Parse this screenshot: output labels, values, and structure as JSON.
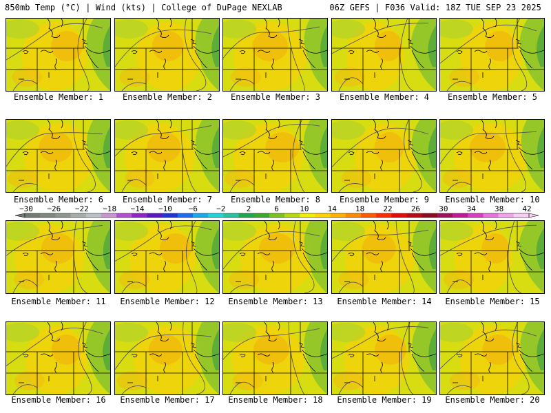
{
  "header": {
    "left": "850mb Temp (°C) | Wind (kts) | College of DuPage NEXLAB",
    "right": "06Z GEFS | F036 Valid: 18Z TUE SEP 23 2025"
  },
  "members": [
    {
      "label": "Ensemble Member: 1",
      "warmth": 0.5
    },
    {
      "label": "Ensemble Member: 2",
      "warmth": 0.5
    },
    {
      "label": "Ensemble Member: 3",
      "warmth": 0.6
    },
    {
      "label": "Ensemble Member: 4",
      "warmth": 0.4
    },
    {
      "label": "Ensemble Member: 5",
      "warmth": 0.45
    },
    {
      "label": "Ensemble Member: 6",
      "warmth": 0.55
    },
    {
      "label": "Ensemble Member: 7",
      "warmth": 0.55
    },
    {
      "label": "Ensemble Member: 8",
      "warmth": 0.55
    },
    {
      "label": "Ensemble Member: 9",
      "warmth": 0.45
    },
    {
      "label": "Ensemble Member: 10",
      "warmth": 0.6
    },
    {
      "label": "Ensemble Member: 11",
      "warmth": 0.55
    },
    {
      "label": "Ensemble Member: 12",
      "warmth": 0.5
    },
    {
      "label": "Ensemble Member: 13",
      "warmth": 0.6
    },
    {
      "label": "Ensemble Member: 14",
      "warmth": 0.55
    },
    {
      "label": "Ensemble Member: 15",
      "warmth": 0.4
    },
    {
      "label": "Ensemble Member: 16",
      "warmth": 0.45
    },
    {
      "label": "Ensemble Member: 17",
      "warmth": 0.55
    },
    {
      "label": "Ensemble Member: 18",
      "warmth": 0.6
    },
    {
      "label": "Ensemble Member: 19",
      "warmth": 0.5
    },
    {
      "label": "Ensemble Member: 20",
      "warmth": 0.5
    }
  ],
  "colorbar": {
    "labels": [
      "−30",
      "−26",
      "−22",
      "−18",
      "−14",
      "−10",
      "−6",
      "−2",
      "2",
      "6",
      "10",
      "14",
      "18",
      "22",
      "26",
      "30",
      "34",
      "38",
      "42"
    ],
    "colors": [
      "#6e7a72",
      "#7d877f",
      "#8c958e",
      "#a3aca6",
      "#b9c0c6",
      "#c994d4",
      "#b04fd0",
      "#8f25c8",
      "#5b17c4",
      "#2233d8",
      "#1b6cf0",
      "#19a9ee",
      "#22d3d8",
      "#27c2a2",
      "#1ea651",
      "#3aa828",
      "#7ac21c",
      "#b6d80c",
      "#f2ef05",
      "#ffd400",
      "#ffb000",
      "#ff8a00",
      "#ff5a00",
      "#ff2a00",
      "#e40a0a",
      "#b80a16",
      "#8c0c22",
      "#a01060",
      "#c01896",
      "#d83cc0",
      "#ea70de",
      "#f3a2ec",
      "#f8ccf4"
    ]
  }
}
